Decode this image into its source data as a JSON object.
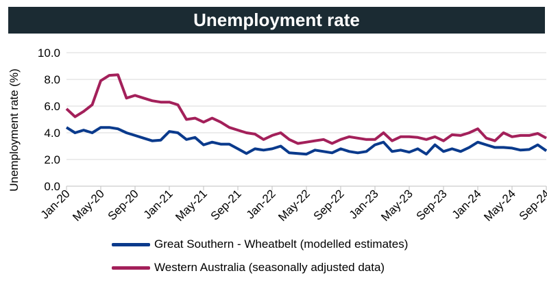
{
  "chart_data": {
    "type": "line",
    "title": "Unemployment rate",
    "ylabel": "Unemployment rate (%)",
    "xlabel": "",
    "ylim": [
      0,
      10
    ],
    "yticks": [
      "0.0",
      "2.0",
      "4.0",
      "6.0",
      "8.0",
      "10.0"
    ],
    "xtick_labels": [
      "Jan-20",
      "May-20",
      "Sep-20",
      "Jan-21",
      "May-21",
      "Sep-21",
      "Jan-22",
      "May-22",
      "Sep-22",
      "Jan-23",
      "May-23",
      "Sep-23",
      "Jan-24",
      "May-24",
      "Sep-24"
    ],
    "grid": true,
    "legend_position": "bottom",
    "x": [
      "Jan-20",
      "Feb-20",
      "Mar-20",
      "Apr-20",
      "May-20",
      "Jun-20",
      "Jul-20",
      "Aug-20",
      "Sep-20",
      "Oct-20",
      "Nov-20",
      "Dec-20",
      "Jan-21",
      "Feb-21",
      "Mar-21",
      "Apr-21",
      "May-21",
      "Jun-21",
      "Jul-21",
      "Aug-21",
      "Sep-21",
      "Oct-21",
      "Nov-21",
      "Dec-21",
      "Jan-22",
      "Feb-22",
      "Mar-22",
      "Apr-22",
      "May-22",
      "Jun-22",
      "Jul-22",
      "Aug-22",
      "Sep-22",
      "Oct-22",
      "Nov-22",
      "Dec-22",
      "Jan-23",
      "Feb-23",
      "Mar-23",
      "Apr-23",
      "May-23",
      "Jun-23",
      "Jul-23",
      "Aug-23",
      "Sep-23",
      "Oct-23",
      "Nov-23",
      "Dec-23",
      "Jan-24",
      "Feb-24",
      "Mar-24",
      "Apr-24",
      "May-24",
      "Jun-24",
      "Jul-24",
      "Aug-24",
      "Sep-24"
    ],
    "series": [
      {
        "name": "Great Southern - Wheatbelt (modelled estimates)",
        "color": "#0a3a8c",
        "values": [
          4.4,
          4.0,
          4.2,
          4.0,
          4.4,
          4.4,
          4.3,
          4.0,
          3.8,
          3.6,
          3.4,
          3.45,
          4.1,
          4.0,
          3.5,
          3.65,
          3.1,
          3.3,
          3.15,
          3.15,
          2.8,
          2.45,
          2.8,
          2.7,
          2.8,
          3.0,
          2.5,
          2.45,
          2.4,
          2.7,
          2.6,
          2.5,
          2.8,
          2.6,
          2.5,
          2.6,
          3.1,
          3.3,
          2.6,
          2.7,
          2.55,
          2.8,
          2.4,
          3.1,
          2.6,
          2.8,
          2.6,
          2.9,
          3.3,
          3.1,
          2.9,
          2.9,
          2.85,
          2.7,
          2.75,
          3.1,
          2.65
        ]
      },
      {
        "name": "Western Australia (seasonally adjusted data)",
        "color": "#a3205a",
        "values": [
          5.8,
          5.2,
          5.6,
          6.1,
          7.9,
          8.3,
          8.35,
          6.6,
          6.8,
          6.6,
          6.4,
          6.3,
          6.3,
          6.1,
          5.0,
          5.1,
          4.8,
          5.1,
          4.8,
          4.4,
          4.2,
          4.0,
          3.9,
          3.5,
          3.8,
          4.0,
          3.5,
          3.2,
          3.3,
          3.4,
          3.5,
          3.2,
          3.5,
          3.7,
          3.6,
          3.5,
          3.5,
          4.0,
          3.4,
          3.7,
          3.7,
          3.65,
          3.5,
          3.7,
          3.4,
          3.85,
          3.8,
          4.0,
          4.3,
          3.6,
          3.4,
          4.0,
          3.7,
          3.8,
          3.8,
          3.95,
          3.6
        ]
      }
    ]
  }
}
